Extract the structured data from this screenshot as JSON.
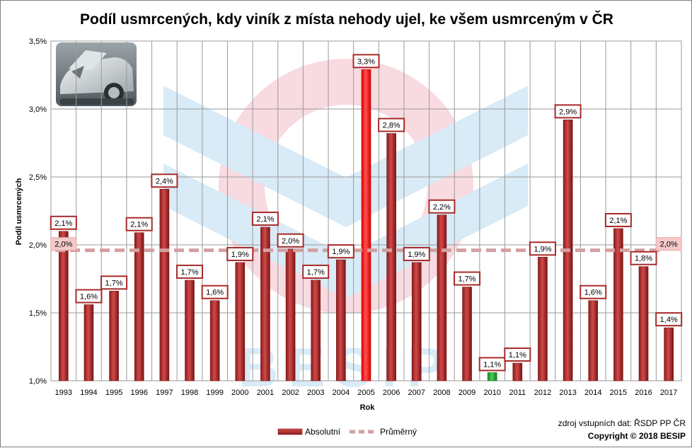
{
  "chart_data": {
    "type": "bar",
    "title": "Podíl usmrcených, kdy viník z místa nehody ujel, ke všem usmrceným v ČR",
    "xlabel": "Rok",
    "ylabel": "Podíl usmrcených",
    "ylim": [
      1.0,
      3.5
    ],
    "yticks": [
      "1,0%",
      "1,5%",
      "2,0%",
      "2,5%",
      "3,0%",
      "3,5%"
    ],
    "grid": true,
    "legend_position": "bottom",
    "categories": [
      "1993",
      "1994",
      "1995",
      "1996",
      "1997",
      "1998",
      "1999",
      "2000",
      "2001",
      "2002",
      "2003",
      "2004",
      "2005",
      "2006",
      "2007",
      "2008",
      "2009",
      "2010",
      "2011",
      "2012",
      "2013",
      "2014",
      "2015",
      "2016",
      "2017"
    ],
    "series": [
      {
        "name": "Absolutní",
        "values": [
          2.1,
          1.56,
          1.66,
          2.09,
          2.41,
          1.74,
          1.59,
          1.87,
          2.13,
          1.97,
          1.74,
          1.89,
          3.29,
          2.82,
          1.87,
          2.22,
          1.69,
          1.06,
          1.13,
          1.91,
          2.92,
          1.59,
          2.12,
          1.84,
          1.39
        ],
        "labels": [
          "2,1%",
          "1,6%",
          "1,7%",
          "2,1%",
          "2,4%",
          "1,7%",
          "1,6%",
          "1,9%",
          "2,1%",
          "2,0%",
          "1,7%",
          "1,9%",
          "3,3%",
          "2,8%",
          "1,9%",
          "2,2%",
          "1,7%",
          "1,1%",
          "1,1%",
          "1,9%",
          "2,9%",
          "1,6%",
          "2,1%",
          "1,8%",
          "1,4%"
        ]
      },
      {
        "name": "Průměrný",
        "value": 1.96,
        "label": "2,0%"
      }
    ],
    "highlight": {
      "max_index": 12,
      "min_index": 17
    },
    "colors": {
      "bar": "#b32b2b",
      "max": "#ff1a1a",
      "min": "#22a832",
      "average": "#d4a0a0",
      "label_border": "#a82a2a",
      "average_label_bg": "#f5c9c9"
    }
  },
  "footer": {
    "source": "zdroj vstupních dat: ŘSDP PP ČR",
    "copyright": "Copyright © 2018 BESIP"
  },
  "watermark_text": "BESIP"
}
